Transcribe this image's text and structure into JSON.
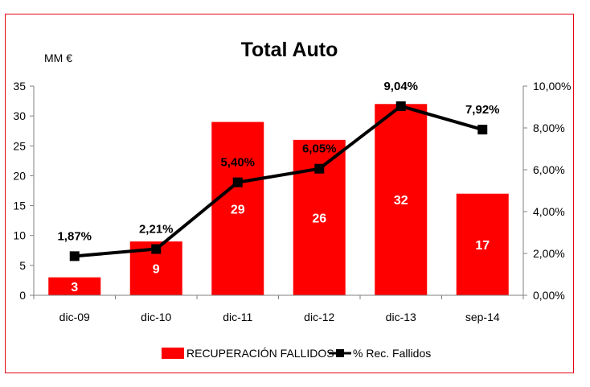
{
  "chart_data": {
    "type": "bar",
    "title": "Total Auto",
    "unit_label": "MM €",
    "categories": [
      "dic-09",
      "dic-10",
      "dic-11",
      "dic-12",
      "dic-13",
      "sep-14"
    ],
    "series": [
      {
        "name": "RECUPERACIÓN FALLIDOS",
        "type": "bar",
        "axis": "left",
        "color": "#ff0000",
        "values": [
          3,
          9,
          29,
          26,
          32,
          17
        ],
        "labels": [
          "3",
          "9",
          "29",
          "26",
          "32",
          "17"
        ]
      },
      {
        "name": "% Rec. Fallidos",
        "type": "line",
        "axis": "right",
        "color": "#000000",
        "values": [
          1.87,
          2.21,
          5.4,
          6.05,
          9.04,
          7.92
        ],
        "labels": [
          "1,87%",
          "2,21%",
          "5,40%",
          "6,05%",
          "9,04%",
          "7,92%"
        ]
      }
    ],
    "y_left": {
      "min": 0,
      "max": 35,
      "ticks": [
        0,
        5,
        10,
        15,
        20,
        25,
        30,
        35
      ],
      "tick_labels": [
        "0",
        "5",
        "10",
        "15",
        "20",
        "25",
        "30",
        "35"
      ]
    },
    "y_right": {
      "min": 0,
      "max": 10,
      "ticks": [
        0,
        2,
        4,
        6,
        8,
        10
      ],
      "tick_labels": [
        "0,00%",
        "2,00%",
        "4,00%",
        "6,00%",
        "8,00%",
        "10,00%"
      ]
    },
    "grid": false,
    "legend": "bottom"
  },
  "colors": {
    "frame": "#e30613",
    "bar": "#ff0000",
    "line": "#000000",
    "axis": "#808080"
  }
}
